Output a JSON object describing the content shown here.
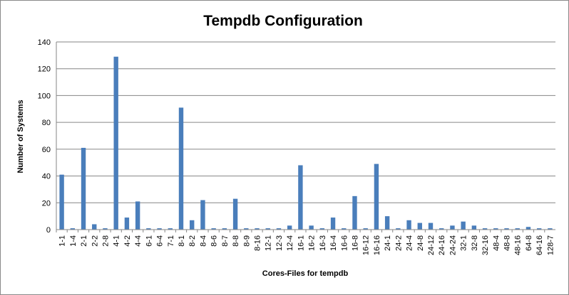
{
  "chart_data": {
    "type": "bar",
    "title": "Tempdb Configuration",
    "xlabel": "Cores-Files for tempdb",
    "ylabel": "Number of Systems",
    "ylim": [
      0,
      140
    ],
    "yticks": [
      0,
      20,
      40,
      60,
      80,
      100,
      120,
      140
    ],
    "grid": "horizontal",
    "legend": "none",
    "bar_color": "#4a7ebb",
    "categories": [
      "1-1",
      "1-4",
      "2-1",
      "2-2",
      "2-8",
      "4-1",
      "4-2",
      "4-4",
      "6-1",
      "6-4",
      "7-1",
      "8-1",
      "8-2",
      "8-4",
      "8-6",
      "8-7",
      "8-8",
      "8-9",
      "8-16",
      "12-1",
      "12-3",
      "12-4",
      "16-1",
      "16-2",
      "16-3",
      "16-4",
      "16-6",
      "16-8",
      "16-12",
      "16-16",
      "24-1",
      "24-2",
      "24-4",
      "24-8",
      "24-12",
      "24-16",
      "24-24",
      "32-1",
      "32-8",
      "32-16",
      "48-4",
      "48-8",
      "48-16",
      "64-8",
      "64-16",
      "128-7"
    ],
    "values": [
      41,
      1,
      61,
      4,
      1,
      129,
      9,
      21,
      1,
      1,
      1,
      91,
      7,
      22,
      1,
      1,
      23,
      1,
      1,
      1,
      1,
      3,
      48,
      3,
      1,
      9,
      1,
      25,
      1,
      49,
      10,
      1,
      7,
      5,
      5,
      1,
      3,
      6,
      3,
      1,
      1,
      1,
      1,
      2,
      1,
      1
    ]
  }
}
